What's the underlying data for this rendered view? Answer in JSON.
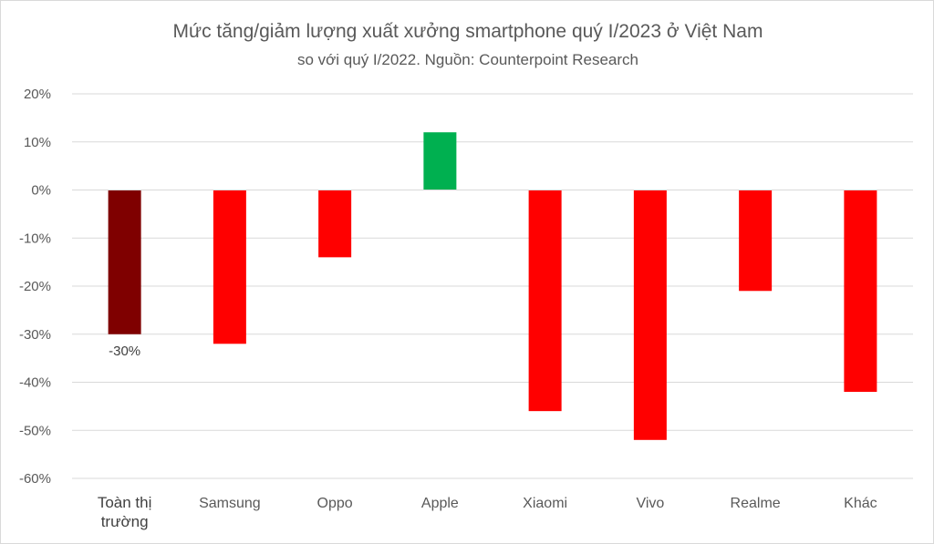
{
  "chart_data": {
    "type": "bar",
    "title": "Mức tăng/giảm lượng xuất xưởng smartphone quý I/2023 ở Việt Nam",
    "subtitle": "so với quý I/2022. Nguồn: Counterpoint Research",
    "categories": [
      [
        "Toàn thị",
        "trường"
      ],
      [
        "Samsung"
      ],
      [
        "Oppo"
      ],
      [
        "Apple"
      ],
      [
        "Xiaomi"
      ],
      [
        "Vivo"
      ],
      [
        "Realme"
      ],
      [
        "Khác"
      ]
    ],
    "values": [
      -30,
      -32,
      -14,
      12,
      -46,
      -52,
      -21,
      -42
    ],
    "colors": [
      "#7f0000",
      "#ff0000",
      "#ff0000",
      "#00b050",
      "#ff0000",
      "#ff0000",
      "#ff0000",
      "#ff0000"
    ],
    "data_labels": [
      "-30%",
      null,
      null,
      null,
      null,
      null,
      null,
      null
    ],
    "yticks": [
      "20%",
      "10%",
      "0%",
      "-10%",
      "-20%",
      "-30%",
      "-40%",
      "-50%",
      "-60%"
    ],
    "ylim": [
      -60,
      20
    ],
    "grid": true,
    "legend": "none"
  }
}
